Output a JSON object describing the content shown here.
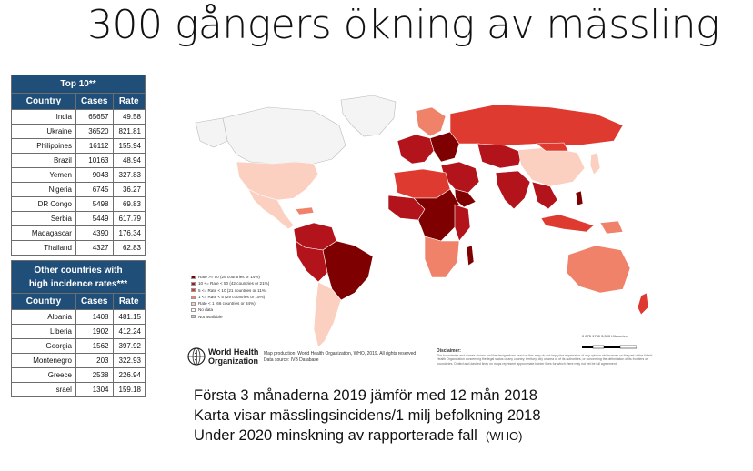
{
  "title": "300 gångers ökning av mässling",
  "top10": {
    "header": "Top 10**",
    "columns": [
      "Country",
      "Cases",
      "Rate"
    ],
    "rows": [
      [
        "India",
        "65657",
        "49.58"
      ],
      [
        "Ukraine",
        "36520",
        "821.81"
      ],
      [
        "Philippines",
        "16112",
        "155.94"
      ],
      [
        "Brazil",
        "10163",
        "48.94"
      ],
      [
        "Yemen",
        "9043",
        "327.83"
      ],
      [
        "Nigeria",
        "6745",
        "36.27"
      ],
      [
        "DR Congo",
        "5498",
        "69.83"
      ],
      [
        "Serbia",
        "5449",
        "617.79"
      ],
      [
        "Madagascar",
        "4390",
        "176.34"
      ],
      [
        "Thailand",
        "4327",
        "62.83"
      ]
    ]
  },
  "other": {
    "header_line1": "Other countries with",
    "header_line2": "high incidence rates***",
    "columns": [
      "Country",
      "Cases",
      "Rate"
    ],
    "rows": [
      [
        "Albania",
        "1408",
        "481.15"
      ],
      [
        "Liberia",
        "1902",
        "412.24"
      ],
      [
        "Georgia",
        "1562",
        "397.92"
      ],
      [
        "Montenegro",
        "203",
        "322.93"
      ],
      [
        "Greece",
        "2538",
        "226.94"
      ],
      [
        "Israel",
        "1304",
        "159.18"
      ]
    ]
  },
  "legend": [
    {
      "label": "Rate >= 50 (28 countries or 14%)",
      "color": "#7f0000"
    },
    {
      "label": "10 <= Rate < 50 (42 countries or 21%)",
      "color": "#b3141b"
    },
    {
      "label": "5 <= Rate < 10 (21 countries or 11%)",
      "color": "#de3a2f"
    },
    {
      "label": "1 <= Rate < 5 (29 countries or 15%)",
      "color": "#f0826a"
    },
    {
      "label": "Rate < 1 (66 countries or 34%)",
      "color": "#fbd0c0"
    },
    {
      "label": "No data",
      "color": "#ffffff"
    },
    {
      "label": "Not available",
      "color": "#c8c8c8"
    }
  ],
  "colors": {
    "header_blue": "#1f4e79",
    "dark": "#7f0000",
    "red": "#b3141b",
    "mid": "#de3a2f",
    "light": "#f0826a",
    "pale": "#fbd0c0",
    "grey": "#c8c8c8",
    "white_fill": "#f4f4f4"
  },
  "who": {
    "line1": "World Health",
    "line2": "Organization"
  },
  "production": {
    "line1": "Map production: World Health Organization, WHO, 2019. All rights reserved",
    "line2": "Data source:      IVB Database"
  },
  "disclaimer": {
    "heading": "Disclaimer:",
    "text": "The boundaries and names shown and the designations used on this map do not imply the expression of any opinion whatsoever on the part of the World Health Organization concerning the legal status of any country, territory, city or area or of its authorities, or concerning the delimitation of its frontiers or boundaries. Dotted and dashed lines on maps represent approximate border lines for which there may not yet be full agreement."
  },
  "scale_label": "0    875   1750         3,500 Kilometers",
  "notes": {
    "line1": "Första  3 månaderna 2019 jämför med 12 mån 2018",
    "line2": "Karta visar mässlingsincidens/1 milj befolkning 2018",
    "line3": "Under 2020 minskning av rapporterade fall",
    "line3_tag": "(WHO)"
  }
}
